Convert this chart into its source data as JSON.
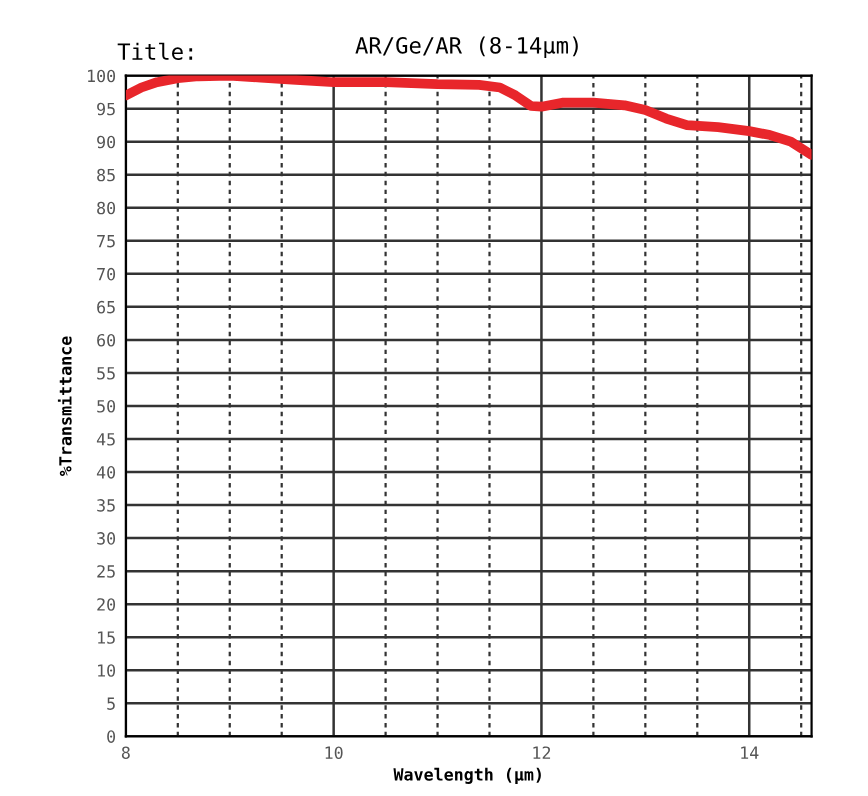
{
  "chart_data": {
    "type": "line",
    "title": "AR/Ge/AR (8-14μm)",
    "annotations": [
      "Title:"
    ],
    "xlabel": "Wavelength (μm)",
    "ylabel": "%Transmittance",
    "x": [
      8,
      8.15,
      8.3,
      8.5,
      8.7,
      9.0,
      9.3,
      9.6,
      10,
      10.5,
      11,
      11.4,
      11.6,
      11.75,
      11.9,
      12.0,
      12.2,
      12.5,
      12.8,
      13.0,
      13.2,
      13.4,
      13.7,
      14.0,
      14.2,
      14.4,
      14.6
    ],
    "series": [
      {
        "color": "#e8262b",
        "values": [
          97,
          98.2,
          99,
          99.6,
          99.9,
          100,
          99.7,
          99.4,
          99,
          99,
          98.7,
          98.6,
          98.2,
          97,
          95.4,
          95.3,
          95.9,
          95.9,
          95.5,
          94.8,
          93.5,
          92.5,
          92.2,
          91.6,
          91,
          90,
          88
        ]
      }
    ],
    "marker": "none",
    "line_style": "solid",
    "xlim": [
      8,
      14.6
    ],
    "ylim": [
      0,
      100
    ],
    "xticks": [
      8,
      {
        "value": 8.5,
        "label": null
      },
      {
        "value": 9,
        "label": null
      },
      {
        "value": 9.5,
        "label": null
      },
      10,
      {
        "value": 10.5,
        "label": null
      },
      {
        "value": 11,
        "label": null
      },
      {
        "value": 11.5,
        "label": null
      },
      12,
      {
        "value": 12.5,
        "label": null
      },
      {
        "value": 13,
        "label": null
      },
      {
        "value": 13.5,
        "label": null
      },
      14,
      {
        "value": 14.5,
        "label": null
      }
    ],
    "yticks": [
      0,
      5,
      10,
      15,
      20,
      25,
      30,
      35,
      40,
      45,
      50,
      55,
      60,
      65,
      70,
      75,
      80,
      85,
      90,
      95,
      100
    ],
    "grid": true
  }
}
